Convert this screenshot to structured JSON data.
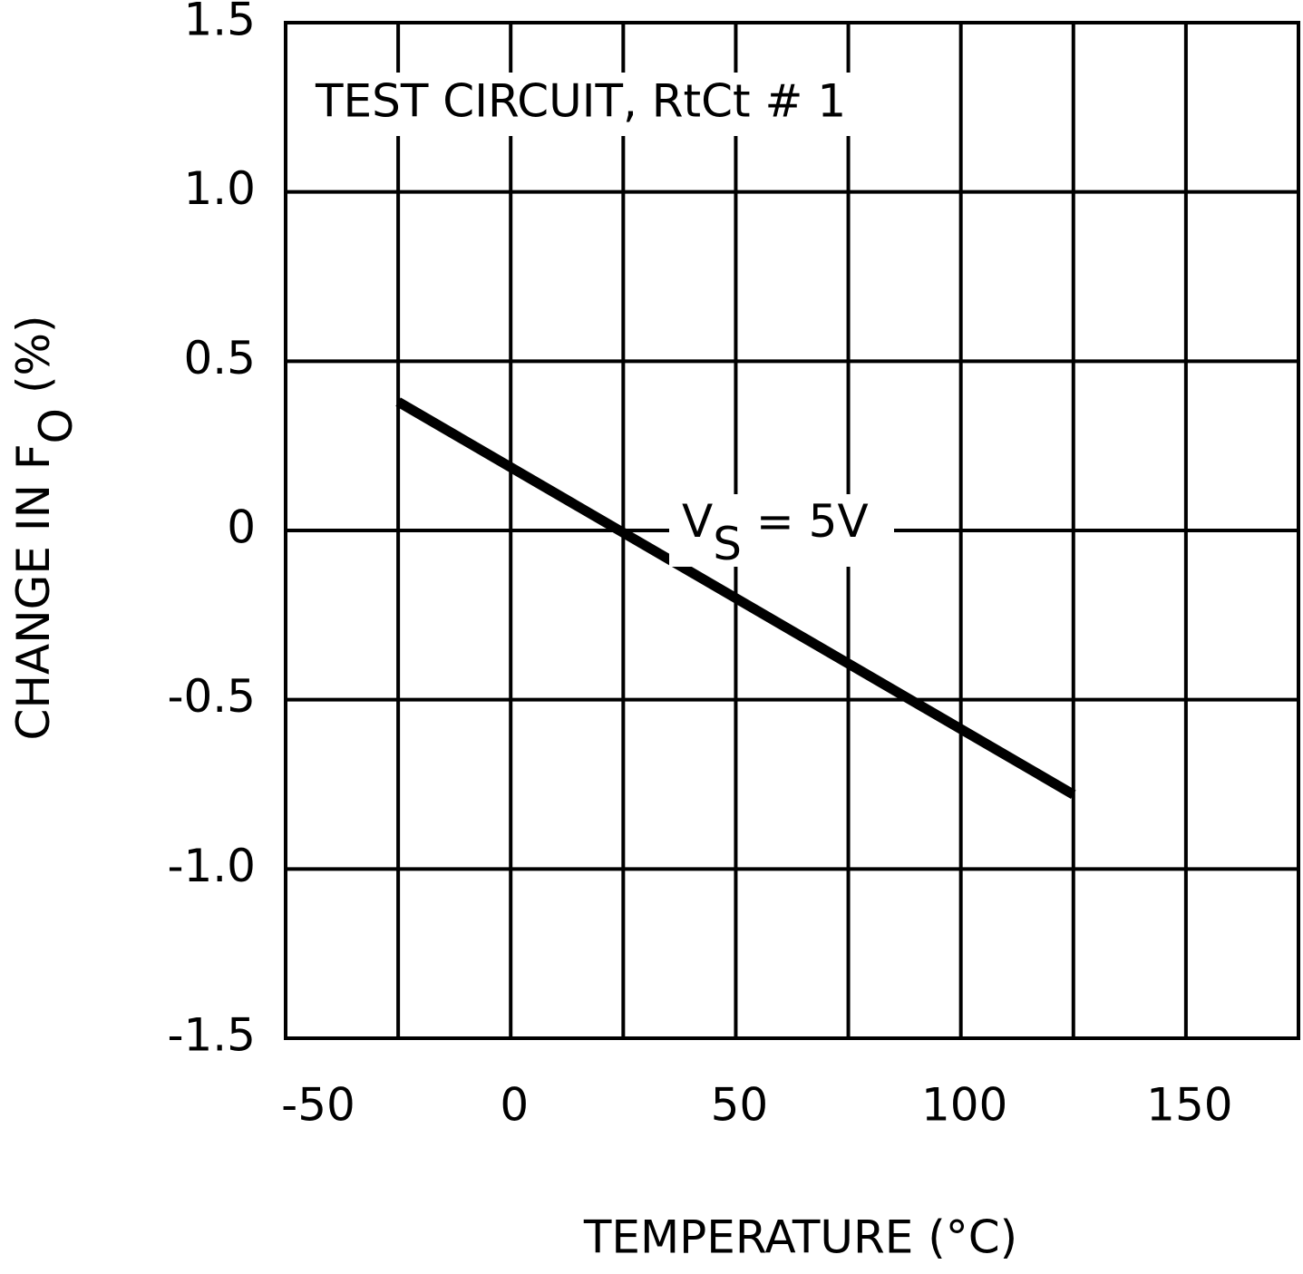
{
  "chart_data": {
    "type": "line",
    "annotation": "TEST CIRCUIT, RtCt # 1",
    "curve_label": {
      "main": "V",
      "sub": "S",
      "rest": " = 5V"
    },
    "x_label": "TEMPERATURE (°C)",
    "y_label": {
      "main": "CHANGE IN F",
      "sub": "O",
      "rest": " (%)"
    },
    "x": [
      -25,
      125
    ],
    "series": [
      {
        "color": "#000000",
        "values": [
          0.38,
          -0.78
        ]
      }
    ],
    "xlim": [
      -50,
      175
    ],
    "xticks": [
      -50,
      0,
      50,
      100,
      150
    ],
    "x_minor_grid": [
      -25,
      25,
      75,
      125
    ],
    "ylim": [
      -1.5,
      1.5
    ],
    "yticks": [
      -1.5,
      {
        "value": -1,
        "label": "-1.0"
      },
      -0.5,
      0,
      0.5,
      {
        "value": 1,
        "label": "1.0"
      },
      1.5
    ],
    "grid": true
  }
}
